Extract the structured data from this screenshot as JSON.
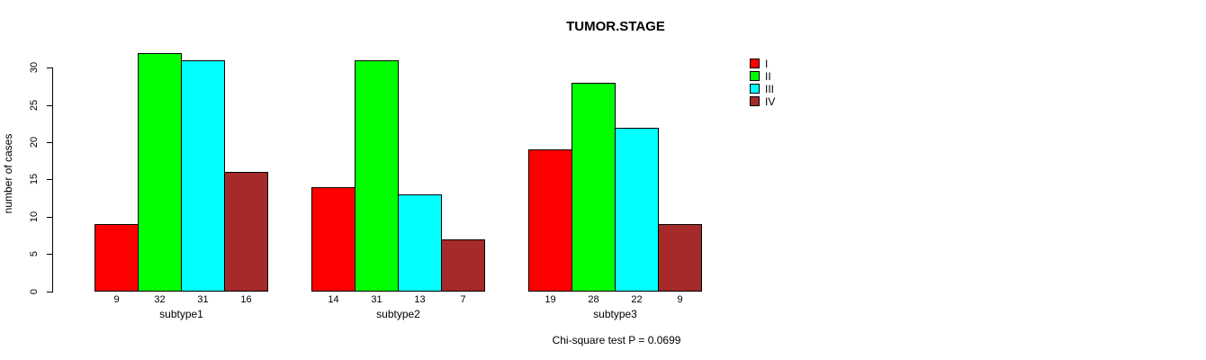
{
  "chart_data": {
    "type": "bar",
    "title": "TUMOR.STAGE",
    "xlabel": "",
    "ylabel": "number of cases",
    "categories": [
      "subtype1",
      "subtype2",
      "subtype3"
    ],
    "series": [
      {
        "name": "I",
        "color": "#FF0000",
        "values": [
          9,
          14,
          19
        ]
      },
      {
        "name": "II",
        "color": "#00FF00",
        "values": [
          32,
          31,
          28
        ]
      },
      {
        "name": "III",
        "color": "#00FFFF",
        "values": [
          31,
          13,
          22
        ]
      },
      {
        "name": "IV",
        "color": "#A52A2A",
        "values": [
          16,
          7,
          9
        ]
      }
    ],
    "yticks": [
      0,
      5,
      10,
      15,
      20,
      25,
      30
    ],
    "ylim": [
      0,
      32
    ],
    "grid": false,
    "bar_value_labels": true,
    "legend_position": "top-right",
    "legend_entries": [
      "I",
      "II",
      "III",
      "IV"
    ],
    "footnote": "Chi-square test P = 0.0699",
    "colors": {
      "background": "#FFFFFF",
      "axis": "#000000",
      "text": "#000000"
    }
  }
}
